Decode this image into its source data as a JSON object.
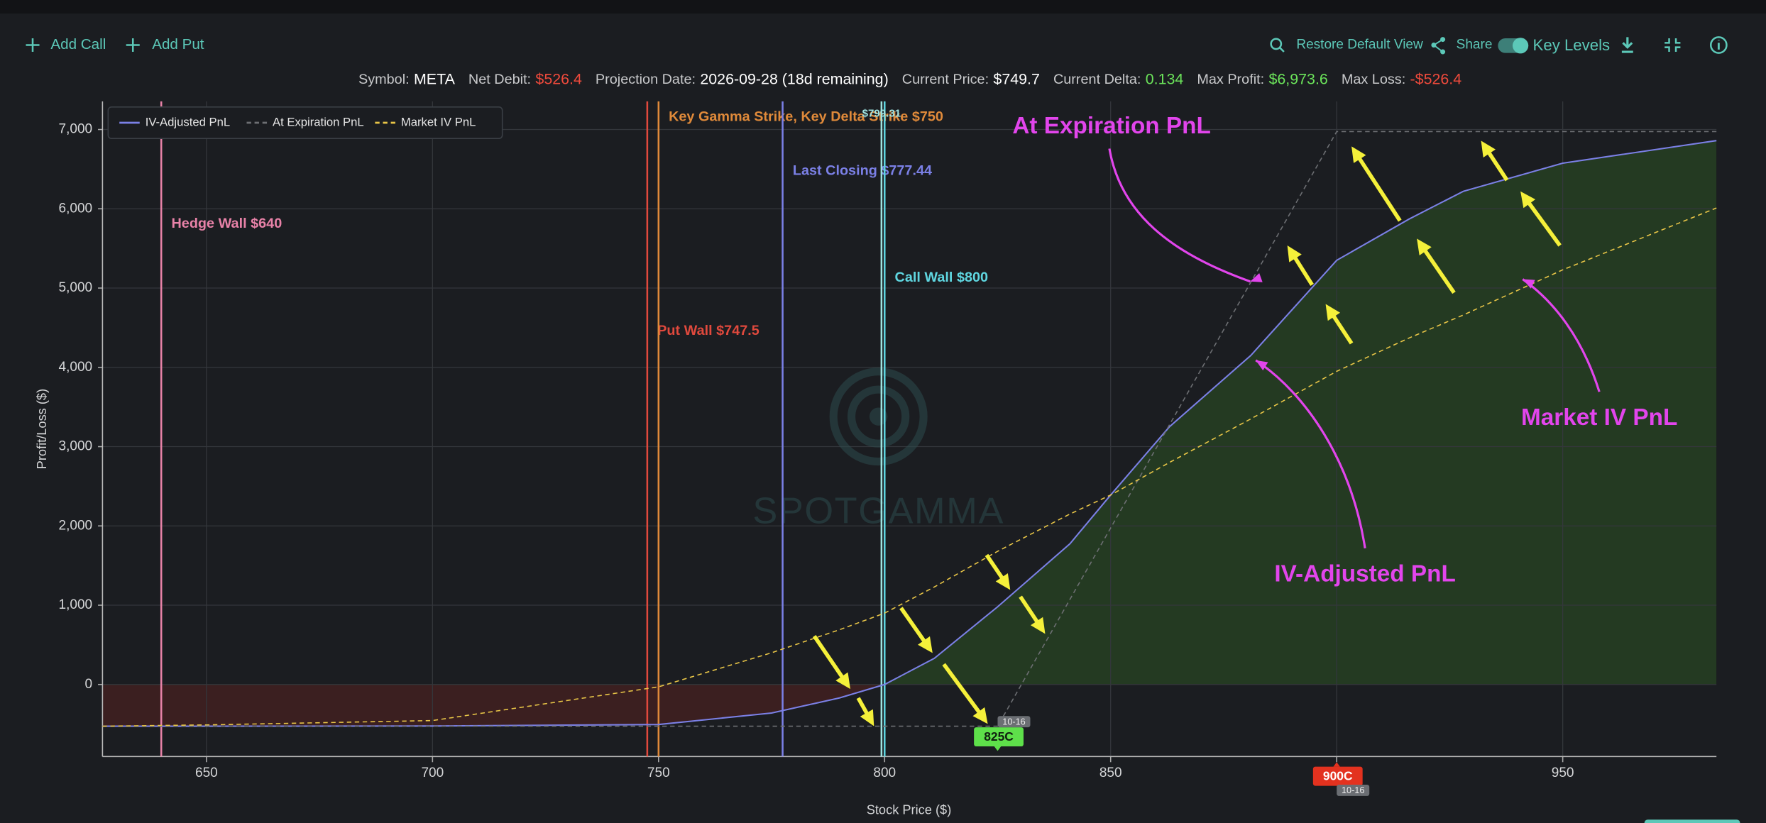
{
  "toolbar": {
    "add_call": "Add Call",
    "add_put": "Add Put",
    "restore": "Restore Default View",
    "share": "Share",
    "key_levels": "Key Levels"
  },
  "stats": [
    {
      "label": "Symbol:",
      "value": "META",
      "color": "#ffffff"
    },
    {
      "label": "Net Debit:",
      "value": "$526.4",
      "color": "#ef4a3c"
    },
    {
      "label": "Projection Date:",
      "value": "2026-09-28 (18d remaining)",
      "color": "#ffffff"
    },
    {
      "label": "Current Price:",
      "value": "$749.7",
      "color": "#ffffff"
    },
    {
      "label": "Current Delta:",
      "value": "0.134",
      "color": "#6be35a"
    },
    {
      "label": "Max Profit:",
      "value": "$6,973.6",
      "color": "#6be35a"
    },
    {
      "label": "Max Loss:",
      "value": "-$526.4",
      "color": "#ef4a3c"
    }
  ],
  "chart_data": {
    "type": "line",
    "x_label": "Stock Price ($)",
    "y_label": "Profit/Loss ($)",
    "watermark": "SPOTGAMMA",
    "x": [
      627,
      650,
      700,
      750,
      775,
      790,
      800,
      811,
      825,
      841,
      850,
      863,
      881,
      900,
      916,
      928,
      950,
      984
    ],
    "series": [
      {
        "name": "IV-Adjusted PnL",
        "color": "#7b80e6",
        "dashed": false,
        "fill": true,
        "values": [
          -526,
          -526,
          -524,
          -505,
          -360,
          -170,
          0,
          330,
          980,
          1775,
          2390,
          3250,
          4150,
          5350,
          5870,
          6220,
          6575,
          6860
        ]
      },
      {
        "name": "At Expiration PnL",
        "color": "#6d6f73",
        "dashed": true,
        "fill": false,
        "values": [
          -526.4,
          -526.4,
          -526.4,
          -526.4,
          -526.4,
          -526.4,
          -526.4,
          -526.4,
          -526.4,
          1073.6,
          1973.6,
          3273.6,
          5073.6,
          6973.6,
          6973.6,
          6973.6,
          6973.6,
          6973.6
        ]
      },
      {
        "name": "Market IV PnL",
        "color": "#e8c547",
        "dashed": true,
        "fill": false,
        "values": [
          -526,
          -510,
          -455,
          -30,
          400,
          690,
          900,
          1230,
          1680,
          2150,
          2390,
          2800,
          3350,
          3950,
          4370,
          4660,
          5230,
          6010
        ]
      }
    ],
    "profit_color": "#243a22",
    "loss_color": "#3b1f20",
    "xlim": [
      627,
      984
    ],
    "ylim": [
      -909,
      7355
    ],
    "xticks": [
      650,
      700,
      750,
      800,
      850,
      900,
      950
    ],
    "yticks": [
      0,
      {
        "value": 1000,
        "label": "1,000"
      },
      {
        "value": 2000,
        "label": "2,000"
      },
      {
        "value": 3000,
        "label": "3,000"
      },
      {
        "value": 4000,
        "label": "4,000"
      },
      {
        "value": 5000,
        "label": "5,000"
      },
      {
        "value": 6000,
        "label": "6,000"
      },
      {
        "value": 7000,
        "label": "7,000"
      }
    ],
    "grid": true,
    "levels": [
      {
        "label": "Hedge Wall $640",
        "x": 640,
        "color": "#e882a8"
      },
      {
        "label": "Put Wall $747.5",
        "x": 747.5,
        "color": "#e0493d"
      },
      {
        "label": "Key Gamma Strike, Key Delta Strike $750",
        "x": 750,
        "color": "#e08a3a"
      },
      {
        "label": "Last Closing $777.44",
        "x": 777.44,
        "color": "#7b80e6"
      },
      {
        "label": "Call Wall $800",
        "x": 800,
        "color": "#5fd6e0"
      },
      {
        "label": "$799.31",
        "x": 799.31,
        "color": "#9fe3e0"
      }
    ],
    "legs": [
      {
        "label": "825C",
        "strike": 825,
        "expiry": "10-16",
        "color": "#5ee04a"
      },
      {
        "label": "900C",
        "strike": 900,
        "expiry": "10-16",
        "color": "#e3321f"
      }
    ],
    "annotations": [
      "At Expiration PnL",
      "Market IV PnL",
      "IV-Adjusted PnL"
    ],
    "annotation_color": "#e245ec"
  }
}
